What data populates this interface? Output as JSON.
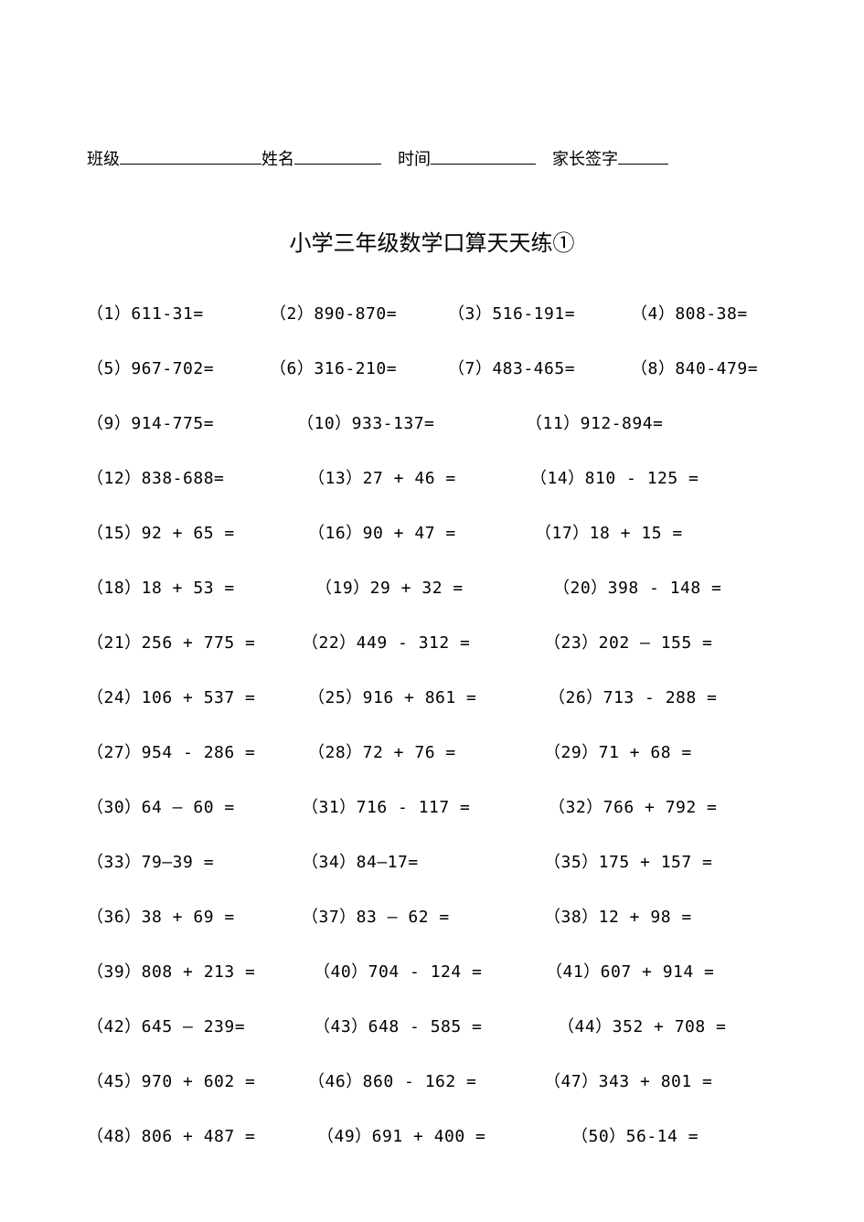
{
  "header": {
    "class_label": "班级",
    "name_label": "姓名",
    "time_label": "时间",
    "parent_label": "家长签字"
  },
  "title": "小学三年级数学口算天天练①",
  "rows": [
    {
      "cols": 4,
      "cls": "",
      "items": [
        "（1）611-31=",
        "（2）890-870=",
        "（3）516-191=",
        "（4）808-38="
      ]
    },
    {
      "cols": 4,
      "cls": "",
      "items": [
        "（5）967-702=",
        "（6）316-210=",
        "（7）483-465=",
        "（8）840-479="
      ]
    },
    {
      "cols": 3,
      "cls": "o1",
      "items": [
        "（9）914-775=",
        "（10）933-137=",
        "（11）912-894="
      ]
    },
    {
      "cols": 3,
      "cls": "o2",
      "items": [
        "（12）838-688=",
        "（13）27 + 46 =",
        "（14）810 - 125 ="
      ]
    },
    {
      "cols": 3,
      "cls": "o3",
      "items": [
        "（15）92 + 65 =",
        "（16）90 + 47 =",
        "（17）18 + 15 ="
      ]
    },
    {
      "cols": 3,
      "cls": "o4",
      "items": [
        "（18）18 + 53 =",
        "（19）29 + 32 =",
        "（20）398 - 148 ="
      ]
    },
    {
      "cols": 3,
      "cls": "o5",
      "items": [
        "（21）256 + 775 =",
        "（22）449 - 312 =",
        "（23）202  –  155 ="
      ]
    },
    {
      "cols": 3,
      "cls": "o6",
      "items": [
        "（24）106 + 537 =",
        "（25）916 + 861 =",
        "（26）713 - 288 ="
      ]
    },
    {
      "cols": 3,
      "cls": "o7",
      "items": [
        "（27）954 - 286 =",
        "（28）72 + 76 =",
        "（29）71 + 68 ="
      ]
    },
    {
      "cols": 3,
      "cls": "o8",
      "items": [
        "（30）64 — 60 =",
        "（31）716 - 117 =",
        "（32）766 + 792 ="
      ]
    },
    {
      "cols": 3,
      "cls": "o9",
      "items": [
        "（33）79—39 =",
        "（34）84—17=",
        "（35）175 + 157 ="
      ]
    },
    {
      "cols": 3,
      "cls": "o10",
      "items": [
        "（36）38 + 69 =",
        "（37）83 — 62 =",
        "（38）12 + 98 ="
      ]
    },
    {
      "cols": 3,
      "cls": "o11",
      "items": [
        "（39）808 + 213 =",
        "（40）704 - 124 =",
        "（41）607 + 914 ="
      ]
    },
    {
      "cols": 3,
      "cls": "o12",
      "items": [
        "（42）645 — 239=",
        "（43）648 - 585 =",
        "（44）352 + 708 ="
      ]
    },
    {
      "cols": 3,
      "cls": "o13",
      "items": [
        "（45）970 + 602 =",
        "（46）860 - 162 =",
        "（47）343 + 801 ="
      ]
    },
    {
      "cols": 3,
      "cls": "o14",
      "items": [
        "（48）806 + 487 =",
        "（49）691 + 400 =",
        "（50）56-14  ="
      ]
    }
  ]
}
